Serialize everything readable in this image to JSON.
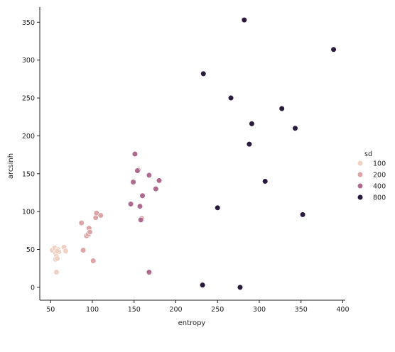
{
  "chart_data": {
    "type": "scatter",
    "xlabel": "entropy",
    "ylabel": "arcsinh",
    "xlim": [
      37,
      403
    ],
    "ylim": [
      -17,
      370
    ],
    "xticks": [
      50,
      100,
      150,
      200,
      250,
      300,
      350,
      400
    ],
    "yticks": [
      0,
      50,
      100,
      150,
      200,
      250,
      300,
      350
    ],
    "grid": false,
    "legend": {
      "title": "sd",
      "placement": "right",
      "entries": [
        {
          "label": "100",
          "color": "#efd2c4"
        },
        {
          "label": "200",
          "color": "#dea5a6"
        },
        {
          "label": "400",
          "color": "#af6a8f"
        },
        {
          "label": "800",
          "color": "#2a1a3d"
        }
      ]
    },
    "series": [
      {
        "name": "100",
        "color": "#efd2c4",
        "points": [
          [
            52,
            49
          ],
          [
            55,
            52
          ],
          [
            59,
            50
          ],
          [
            56,
            45
          ],
          [
            57,
            41
          ],
          [
            56,
            37
          ],
          [
            58,
            38
          ],
          [
            66,
            53
          ],
          [
            68,
            48
          ],
          [
            57,
            20
          ],
          [
            60,
            47
          ],
          [
            58,
            48
          ]
        ]
      },
      {
        "name": "200",
        "color": "#dea5a6",
        "points": [
          [
            87,
            85
          ],
          [
            89,
            49
          ],
          [
            93,
            68
          ],
          [
            95,
            70
          ],
          [
            96,
            78
          ],
          [
            97,
            73
          ],
          [
            104,
            92
          ],
          [
            105,
            98
          ],
          [
            110,
            95
          ],
          [
            101,
            35
          ],
          [
            155,
            155
          ],
          [
            159,
            91
          ]
        ]
      },
      {
        "name": "400",
        "color": "#af6a8f",
        "points": [
          [
            151,
            176
          ],
          [
            154,
            154
          ],
          [
            149,
            139
          ],
          [
            146,
            110
          ],
          [
            157,
            107
          ],
          [
            160,
            121
          ],
          [
            168,
            148
          ],
          [
            176,
            130
          ],
          [
            180,
            141
          ],
          [
            158,
            89
          ],
          [
            168,
            20
          ]
        ]
      },
      {
        "name": "800",
        "color": "#2a1a3d",
        "points": [
          [
            282,
            353
          ],
          [
            389,
            314
          ],
          [
            233,
            282
          ],
          [
            266,
            250
          ],
          [
            327,
            236
          ],
          [
            291,
            216
          ],
          [
            343,
            210
          ],
          [
            288,
            189
          ],
          [
            307,
            140
          ],
          [
            250,
            105
          ],
          [
            352,
            96
          ],
          [
            232,
            3
          ],
          [
            277,
            0
          ]
        ]
      }
    ]
  }
}
